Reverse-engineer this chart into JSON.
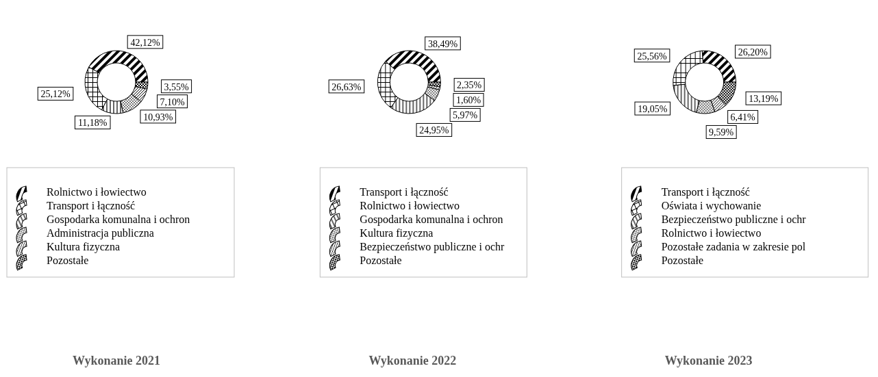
{
  "chart_data": [
    {
      "type": "donut",
      "title": "Wykonanie 2021",
      "categories": [
        "Rolnictwo i łowiectwo",
        "Transport i łączność",
        "Gospodarka komunalna i ochron",
        "Administracja publiczna",
        "Kultura fizyczna",
        "Pozostałe"
      ],
      "values": [
        42.12,
        25.12,
        11.18,
        10.93,
        7.1,
        3.55
      ],
      "value_labels": [
        "42,12%",
        "25,12%",
        "11,18%",
        "10,93%",
        "7,10%",
        "3,55%"
      ],
      "legend": "bottom"
    },
    {
      "type": "donut",
      "title": "Wykonanie 2022",
      "categories": [
        "Transport i łączność",
        "Rolnictwo i łowiectwo",
        "Gospodarka komunalna i ochron",
        "Kultura fizyczna",
        "Bezpieczeństwo publiczne i ochr",
        "Pozostałe"
      ],
      "values": [
        38.49,
        26.63,
        24.95,
        5.97,
        1.6,
        2.35
      ],
      "value_labels": [
        "38,49%",
        "26,63%",
        "24,95%",
        "5,97%",
        "1,60%",
        "2,35%"
      ],
      "legend": "bottom"
    },
    {
      "type": "donut",
      "title": "Wykonanie 2023",
      "categories": [
        "Transport i łączność",
        "Oświata i wychowanie",
        "Bezpieczeństwo publiczne i ochr",
        "Rolnictwo i łowiectwo",
        "Pozostałe zadania w zakresie pol",
        "Pozostałe"
      ],
      "values": [
        26.2,
        25.56,
        19.05,
        9.59,
        6.41,
        13.19
      ],
      "value_labels": [
        "26,20%",
        "25,56%",
        "19,05%",
        "9,59%",
        "6,41%",
        "13,19%"
      ],
      "legend": "bottom"
    }
  ]
}
